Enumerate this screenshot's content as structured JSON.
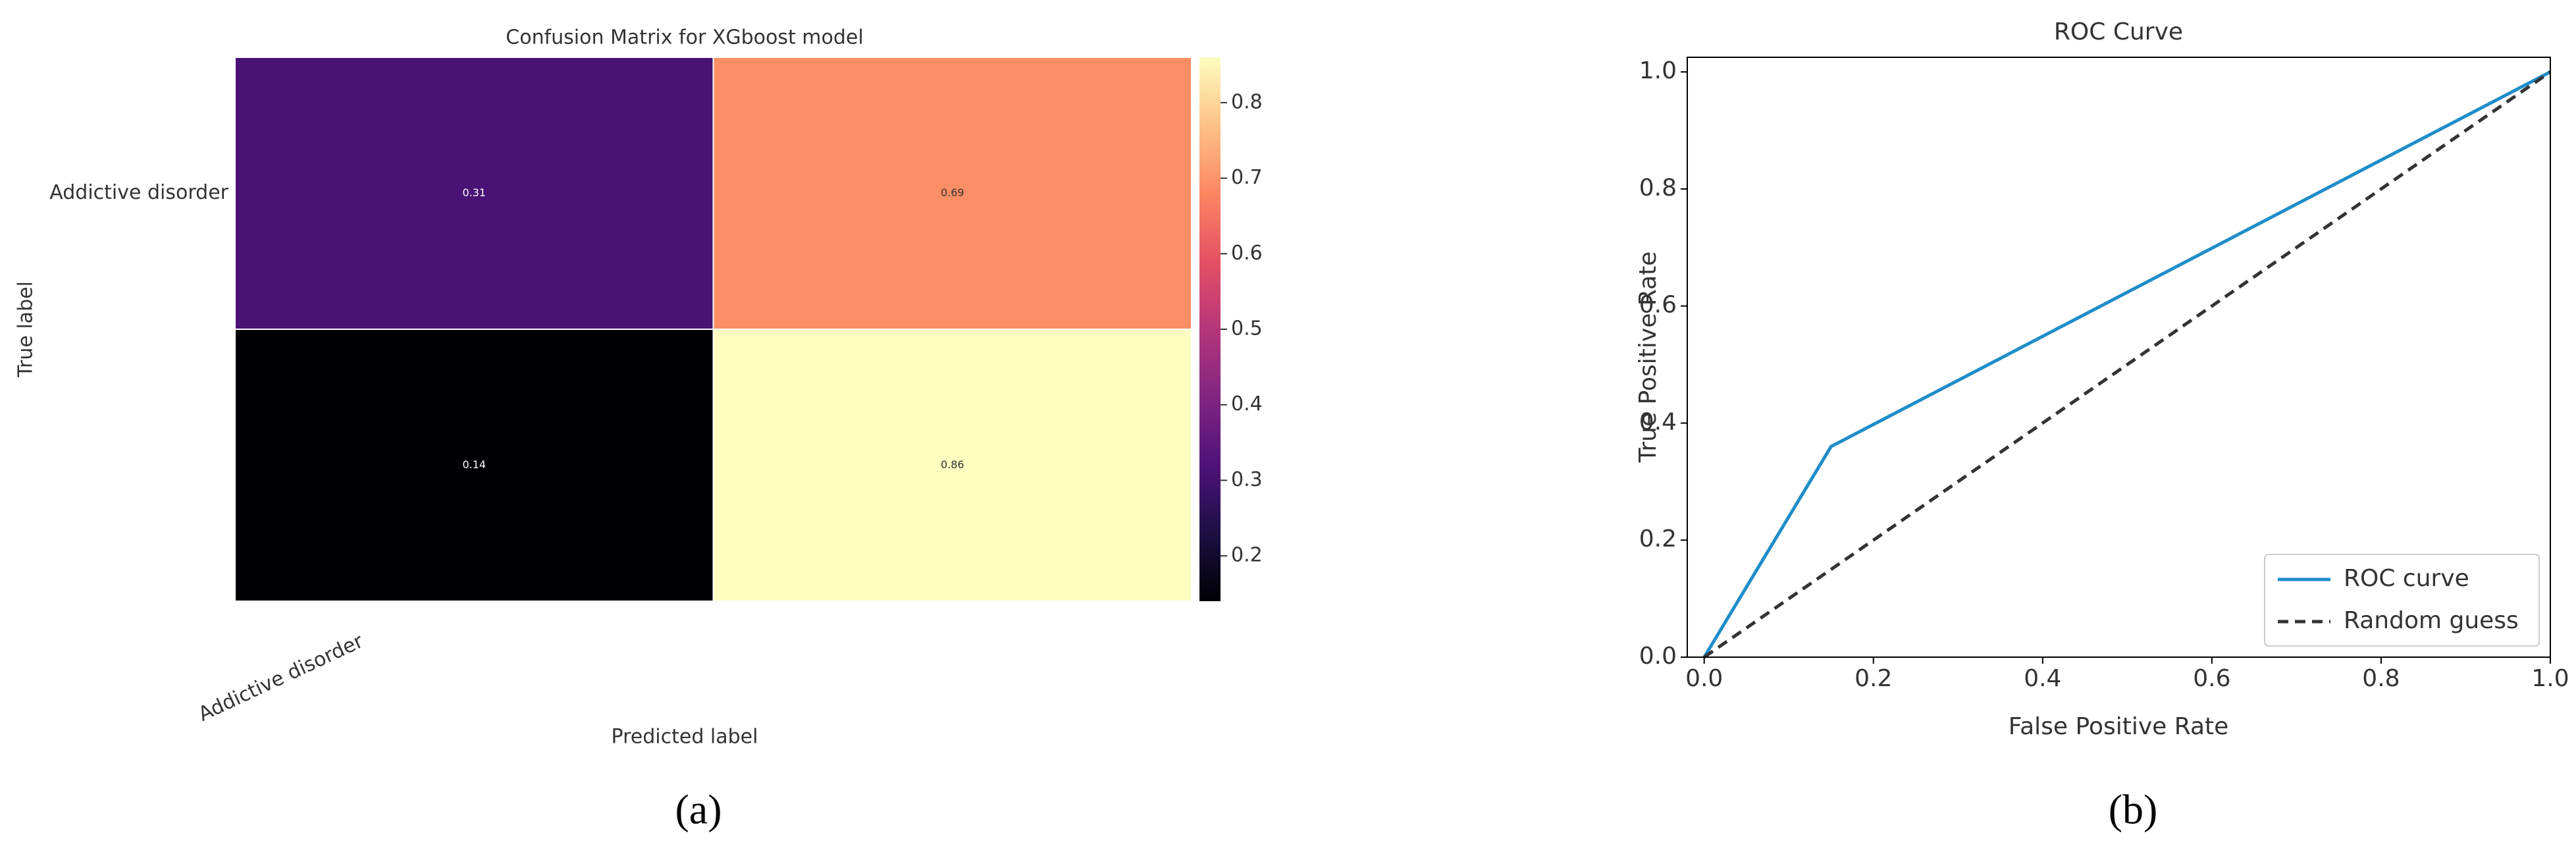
{
  "chart_data": [
    {
      "type": "heatmap",
      "title": "Confusion Matrix for XGboost model",
      "panel_label": "(a)",
      "xlabel": "Predicted label",
      "ylabel": "True label",
      "x_categories": [
        "Addictive disorder",
        null
      ],
      "y_categories": [
        "Addictive disorder",
        null
      ],
      "values": [
        [
          0.31,
          0.69
        ],
        [
          0.14,
          0.86
        ]
      ],
      "colormap": "magma",
      "clim": [
        0.14,
        0.86
      ],
      "cticks": [
        0.2,
        0.3,
        0.4,
        0.5,
        0.6,
        0.7,
        0.8
      ]
    },
    {
      "type": "line",
      "title": "ROC Curve",
      "panel_label": "(b)",
      "xlabel": "False Positive Rate",
      "ylabel": "True Positive Rate",
      "series": [
        {
          "name": "ROC curve",
          "color": "#1f8dc8",
          "linestyle": "solid",
          "x": [
            0,
            0.15,
            1
          ],
          "values": [
            0,
            0.36,
            1
          ]
        },
        {
          "name": "Random guess",
          "color": "#333333",
          "linestyle": "dashed",
          "x": [
            0,
            1
          ],
          "values": [
            0,
            1
          ]
        }
      ],
      "xlim": [
        -0.02,
        1.0
      ],
      "ylim": [
        0,
        1.025
      ],
      "xticks": [
        {
          "value": 0,
          "label": "0.0"
        },
        0.2,
        0.4,
        0.6,
        0.8,
        {
          "value": 1,
          "label": "1.0"
        }
      ],
      "yticks": [
        {
          "value": 0,
          "label": "0.0"
        },
        0.2,
        0.4,
        0.6,
        0.8,
        {
          "value": 1,
          "label": "1.0"
        }
      ],
      "legend": "lower right"
    }
  ]
}
